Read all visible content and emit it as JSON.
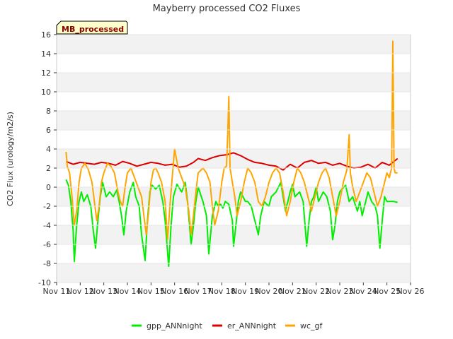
{
  "chart_data": {
    "type": "line",
    "title": "Mayberry processed CO2 Fluxes",
    "ylabel": "CO2 Flux (urology/m2/s)",
    "xlabel": "",
    "xlim": [
      11,
      26
    ],
    "ylim": [
      -10,
      16
    ],
    "xticks": [
      {
        "value": 11,
        "label": "Nov 11"
      },
      {
        "value": 12,
        "label": "Nov 12"
      },
      {
        "value": 13,
        "label": "Nov 13"
      },
      {
        "value": 14,
        "label": "Nov 14"
      },
      {
        "value": 15,
        "label": "Nov 15"
      },
      {
        "value": 16,
        "label": "Nov 16"
      },
      {
        "value": 17,
        "label": "Nov 17"
      },
      {
        "value": 18,
        "label": "Nov 18"
      },
      {
        "value": 19,
        "label": "Nov 19"
      },
      {
        "value": 20,
        "label": "Nov 20"
      },
      {
        "value": 21,
        "label": "Nov 21"
      },
      {
        "value": 22,
        "label": "Nov 22"
      },
      {
        "value": 23,
        "label": "Nov 23"
      },
      {
        "value": 24,
        "label": "Nov 24"
      },
      {
        "value": 25,
        "label": "Nov 25"
      },
      {
        "value": 26,
        "label": "Nov 26"
      }
    ],
    "yticks": [
      -10,
      -8,
      -6,
      -4,
      -2,
      0,
      2,
      4,
      6,
      8,
      10,
      12,
      14,
      16
    ],
    "annotation": "MB_processed",
    "legend_position": "bottom-center",
    "series": [
      {
        "name": "gpp_ANNnight",
        "color": "#00ee00",
        "x": [
          11.4,
          11.5,
          11.6,
          11.7,
          11.75,
          11.85,
          11.95,
          12.05,
          12.15,
          12.3,
          12.45,
          12.55,
          12.65,
          12.75,
          12.85,
          12.95,
          13.1,
          13.25,
          13.4,
          13.55,
          13.65,
          13.75,
          13.85,
          13.95,
          14.1,
          14.25,
          14.35,
          14.5,
          14.6,
          14.75,
          14.85,
          14.95,
          15.05,
          15.2,
          15.35,
          15.5,
          15.6,
          15.75,
          15.85,
          15.95,
          16.1,
          16.3,
          16.45,
          16.55,
          16.7,
          16.8,
          16.9,
          17.0,
          17.2,
          17.35,
          17.45,
          17.6,
          17.75,
          17.85,
          17.95,
          18.05,
          18.15,
          18.3,
          18.45,
          18.5,
          18.6,
          18.7,
          18.8,
          18.9,
          19.0,
          19.1,
          19.25,
          19.4,
          19.55,
          19.65,
          19.8,
          19.9,
          20.0,
          20.1,
          20.3,
          20.5,
          20.6,
          20.7,
          20.8,
          20.9,
          21.0,
          21.1,
          21.3,
          21.45,
          21.6,
          21.7,
          21.8,
          21.9,
          22.0,
          22.1,
          22.3,
          22.45,
          22.6,
          22.7,
          22.8,
          22.9,
          23.0,
          23.1,
          23.25,
          23.4,
          23.55,
          23.65,
          23.75,
          23.85,
          23.95,
          24.05,
          24.2,
          24.35,
          24.5,
          24.6,
          24.7,
          24.8,
          24.9,
          25.0,
          25.1,
          25.2,
          25.3,
          25.45
        ],
        "values": [
          0.8,
          0.2,
          -1.5,
          -4.5,
          -7.8,
          -4.0,
          -1.5,
          -0.5,
          -1.5,
          -0.8,
          -2.0,
          -4.5,
          -6.4,
          -3.5,
          -1.0,
          0.5,
          -1.0,
          -0.5,
          -1.0,
          -0.3,
          -1.5,
          -3.0,
          -5.0,
          -2.5,
          -0.5,
          0.5,
          -1.0,
          -2.0,
          -5.0,
          -7.7,
          -3.5,
          -0.5,
          0.2,
          -0.2,
          0.2,
          -1.5,
          -3.5,
          -8.3,
          -4.0,
          -1.0,
          0.3,
          -0.5,
          0.5,
          -1.5,
          -6.0,
          -4.0,
          -1.5,
          0.0,
          -1.5,
          -3.0,
          -7.0,
          -3.0,
          -1.5,
          -2.0,
          -1.8,
          -2.2,
          -1.5,
          -1.8,
          -3.5,
          -6.2,
          -4.0,
          -1.5,
          -0.5,
          -1.0,
          -1.5,
          -1.5,
          -2.0,
          -3.5,
          -5.0,
          -3.0,
          -1.5,
          -1.8,
          -2.0,
          -1.0,
          -0.5,
          0.5,
          -1.0,
          -2.5,
          -1.5,
          -0.5,
          0.3,
          -1.0,
          -0.5,
          -1.5,
          -6.2,
          -3.5,
          -1.5,
          -1.0,
          0.0,
          -1.5,
          -0.5,
          -1.0,
          -2.5,
          -5.5,
          -4.0,
          -1.5,
          -0.5,
          -0.2,
          0.2,
          -1.5,
          -1.0,
          -1.8,
          -2.5,
          -1.5,
          -3.0,
          -2.0,
          -0.5,
          -1.5,
          -2.0,
          -3.0,
          -6.4,
          -3.5,
          -1.0,
          -1.5,
          -1.5,
          -1.5,
          -1.5,
          -1.6
        ]
      },
      {
        "name": "er_ANNnight",
        "color": "#dd0000",
        "x": [
          11.4,
          11.7,
          12.0,
          12.3,
          12.6,
          12.9,
          13.2,
          13.5,
          13.8,
          14.1,
          14.4,
          14.7,
          15.0,
          15.3,
          15.6,
          15.9,
          16.2,
          16.5,
          16.8,
          17.0,
          17.3,
          17.6,
          17.9,
          18.2,
          18.5,
          18.8,
          19.1,
          19.4,
          19.7,
          20.0,
          20.3,
          20.6,
          20.9,
          21.2,
          21.5,
          21.8,
          22.1,
          22.4,
          22.7,
          23.0,
          23.3,
          23.6,
          23.9,
          24.2,
          24.5,
          24.8,
          25.1,
          25.45
        ],
        "values": [
          2.7,
          2.4,
          2.6,
          2.5,
          2.4,
          2.6,
          2.5,
          2.3,
          2.7,
          2.5,
          2.2,
          2.4,
          2.6,
          2.5,
          2.3,
          2.4,
          2.1,
          2.2,
          2.6,
          3.0,
          2.8,
          3.1,
          3.3,
          3.4,
          3.6,
          3.3,
          2.9,
          2.6,
          2.5,
          2.3,
          2.2,
          1.8,
          2.4,
          2.0,
          2.6,
          2.8,
          2.5,
          2.6,
          2.3,
          2.5,
          2.2,
          2.0,
          2.1,
          2.4,
          2.0,
          2.6,
          2.3,
          3.0
        ]
      },
      {
        "name": "wc_gf",
        "color": "#ffa500",
        "x": [
          11.4,
          11.45,
          11.55,
          11.65,
          11.75,
          11.85,
          11.95,
          12.05,
          12.2,
          12.35,
          12.5,
          12.6,
          12.7,
          12.8,
          12.9,
          13.0,
          13.15,
          13.3,
          13.45,
          13.6,
          13.7,
          13.8,
          13.9,
          14.0,
          14.15,
          14.3,
          14.45,
          14.6,
          14.7,
          14.8,
          14.9,
          15.0,
          15.1,
          15.2,
          15.3,
          15.45,
          15.6,
          15.7,
          15.8,
          15.9,
          16.0,
          16.15,
          16.3,
          16.45,
          16.6,
          16.7,
          16.8,
          16.9,
          17.0,
          17.2,
          17.35,
          17.5,
          17.6,
          17.7,
          17.85,
          18.0,
          18.1,
          18.2,
          18.25,
          18.3,
          18.35,
          18.45,
          18.55,
          18.65,
          18.8,
          18.95,
          19.1,
          19.25,
          19.4,
          19.55,
          19.7,
          19.85,
          20.0,
          20.15,
          20.3,
          20.45,
          20.6,
          20.75,
          20.9,
          21.05,
          21.2,
          21.35,
          21.5,
          21.65,
          21.8,
          21.95,
          22.1,
          22.25,
          22.4,
          22.55,
          22.7,
          22.85,
          23.0,
          23.15,
          23.3,
          23.4,
          23.45,
          23.55,
          23.7,
          23.85,
          24.0,
          24.15,
          24.3,
          24.45,
          24.6,
          24.75,
          24.9,
          25.0,
          25.1,
          25.2,
          25.25,
          25.3,
          25.35,
          25.45
        ],
        "values": [
          3.7,
          2.2,
          1.5,
          -1.0,
          -4.0,
          -2.5,
          0.5,
          2.0,
          2.5,
          1.8,
          0.5,
          -1.5,
          -3.5,
          -2.0,
          0.5,
          1.5,
          2.5,
          2.2,
          1.5,
          -0.5,
          -1.5,
          -2.0,
          0.0,
          1.5,
          2.0,
          1.0,
          0.0,
          -1.0,
          -3.0,
          -5.0,
          -2.5,
          0.5,
          1.8,
          2.0,
          1.5,
          0.5,
          -1.5,
          -5.5,
          -2.0,
          1.0,
          4.0,
          2.0,
          1.0,
          0.0,
          -2.5,
          -5.0,
          -3.0,
          -0.5,
          1.5,
          2.0,
          1.5,
          0.5,
          -2.0,
          -4.0,
          -2.5,
          0.5,
          2.0,
          2.2,
          5.5,
          9.5,
          2.0,
          0.5,
          -1.0,
          -3.0,
          -1.5,
          0.5,
          2.0,
          1.5,
          0.5,
          -1.5,
          -2.0,
          -1.0,
          0.5,
          1.5,
          2.0,
          1.5,
          -0.5,
          -3.0,
          -1.5,
          0.5,
          2.0,
          1.5,
          0.5,
          -1.0,
          -2.5,
          -1.0,
          0.5,
          1.5,
          2.0,
          1.0,
          -1.0,
          -3.0,
          -1.5,
          0.5,
          1.8,
          5.5,
          1.5,
          0.0,
          -1.5,
          -0.5,
          0.5,
          1.5,
          1.0,
          -0.5,
          -2.0,
          -1.0,
          0.5,
          1.5,
          1.0,
          2.0,
          15.3,
          2.0,
          1.5,
          1.5
        ]
      }
    ]
  }
}
